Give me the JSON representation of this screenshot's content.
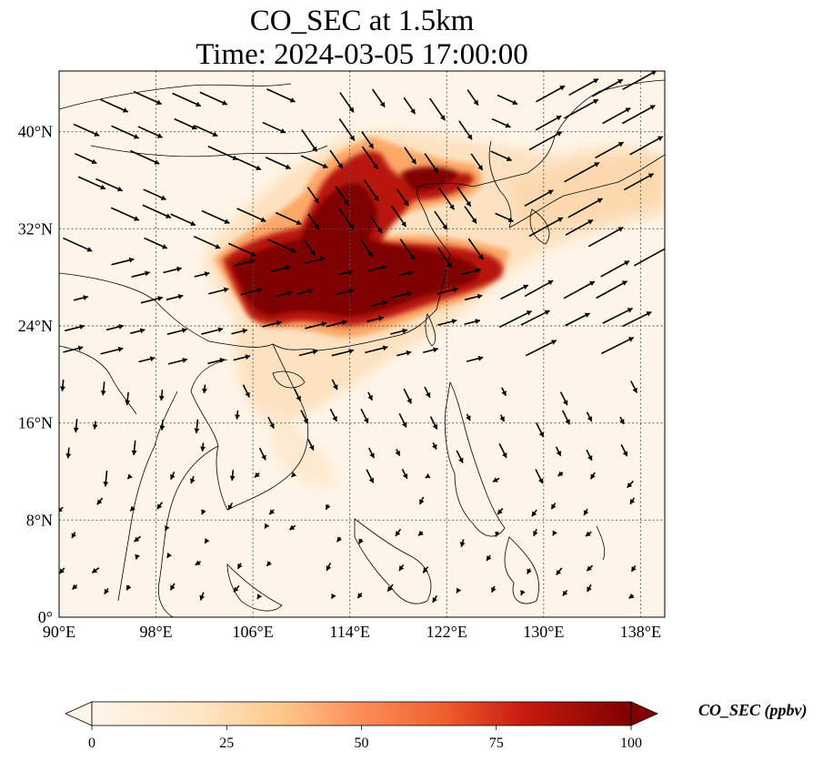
{
  "title": {
    "line1": "CO_SEC at 1.5km",
    "line2": "Time: 2024-03-05 17:00:00"
  },
  "map": {
    "lon_range": [
      90,
      140
    ],
    "lat_range": [
      0,
      45
    ],
    "lon_ticks": [
      {
        "value": 90,
        "label": "90°E"
      },
      {
        "value": 98,
        "label": "98°E"
      },
      {
        "value": 106,
        "label": "106°E"
      },
      {
        "value": 114,
        "label": "114°E"
      },
      {
        "value": 122,
        "label": "122°E"
      },
      {
        "value": 130,
        "label": "130°E"
      },
      {
        "value": 138,
        "label": "138°E"
      }
    ],
    "lat_ticks": [
      {
        "value": 0,
        "label": "0°"
      },
      {
        "value": 8,
        "label": "8°N"
      },
      {
        "value": 16,
        "label": "16°N"
      },
      {
        "value": 24,
        "label": "24°N"
      },
      {
        "value": 32,
        "label": "32°N"
      },
      {
        "value": 40,
        "label": "40°N"
      }
    ],
    "gridlines": true,
    "background_color": "#fff5e8",
    "plume_colors": [
      "#fde0bd",
      "#fca868",
      "#e8582e",
      "#b8180e",
      "#7f0000"
    ]
  },
  "colorbar": {
    "label": "CO_SEC (ppbv)",
    "min": 0,
    "max": 100,
    "ticks": [
      "0",
      "25",
      "50",
      "75",
      "100"
    ],
    "extend": "both",
    "colors": [
      "#fff5eb",
      "#fdd49e",
      "#fc8d59",
      "#d7301f",
      "#990000",
      "#7f0000"
    ]
  }
}
